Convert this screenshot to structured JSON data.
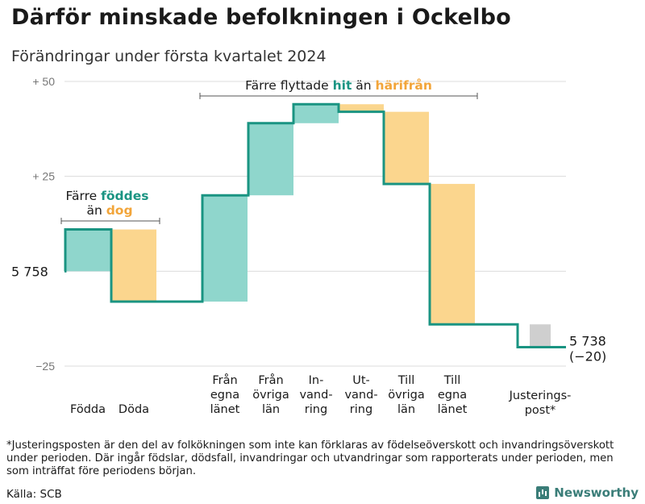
{
  "title": "Därför minskade befolkningen i Ockelbo",
  "subtitle": "Förändringar under första kvartalet 2024",
  "footnote": "*Justeringsposten är den del av folkökningen som inte kan förklaras av födelseöverskott och invandringsöverskott under perioden. Där ingår födslar, dödsfall, invandringar och utvandringar som rapporterats under perioden, men som inträffat före perioden.s början.",
  "source": "Källa: SCB",
  "brand": "Newsworthy",
  "colors": {
    "increase": "#8fd6cc",
    "decrease": "#fbd68e",
    "adjustment": "#cfcfcf",
    "line": "#1a9482",
    "accent_in": "#1a9482",
    "accent_out": "#f2a53a"
  },
  "chart_data": {
    "type": "waterfall",
    "start_value": 5758,
    "end_value": 5738,
    "end_change": "(−20)",
    "start_label": "5 758",
    "end_label": "5 738",
    "ylim": [
      -25,
      50
    ],
    "yticks": [
      {
        "value": 50,
        "label": "+ 50"
      },
      {
        "value": 25,
        "label": "+ 25"
      },
      {
        "value": -25,
        "label": "−25"
      }
    ],
    "steps": [
      {
        "lines": [
          "Födda"
        ],
        "delta": 11,
        "kind": "in"
      },
      {
        "lines": [
          "Döda"
        ],
        "delta": -19,
        "kind": "out"
      },
      {
        "lines": [
          "Från",
          "egna",
          "länet"
        ],
        "delta": 28,
        "kind": "in"
      },
      {
        "lines": [
          "Från",
          "övriga",
          "län"
        ],
        "delta": 19,
        "kind": "in"
      },
      {
        "lines": [
          "In-",
          "vand-",
          "ring"
        ],
        "delta": 5,
        "kind": "in"
      },
      {
        "lines": [
          "Ut-",
          "vand-",
          "ring"
        ],
        "delta": -2,
        "kind": "out"
      },
      {
        "lines": [
          "Till",
          "övriga",
          "län"
        ],
        "delta": -19,
        "kind": "out"
      },
      {
        "lines": [
          "Till",
          "egna",
          "länet"
        ],
        "delta": -37,
        "kind": "out"
      },
      {
        "lines": [
          "Justerings-",
          "post*"
        ],
        "delta": -6,
        "kind": "adj"
      }
    ],
    "annotations": {
      "births": {
        "line1_pre": "Färre",
        "line1_hl": "föddes",
        "line2_pre": "än",
        "line2_hl": "dog"
      },
      "migration": {
        "pre": "Färre flyttade",
        "hl1": "hit",
        "mid": "än",
        "hl2": "härifrån"
      }
    }
  }
}
